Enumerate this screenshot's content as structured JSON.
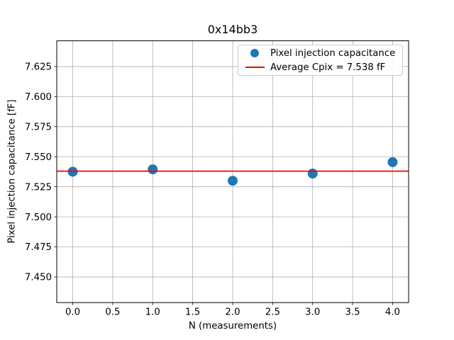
{
  "chart_data": {
    "type": "scatter",
    "title": "0x14bb3",
    "xlabel": "N (measurements)",
    "ylabel": "Pixel injection capacitance [fF]",
    "x": [
      0,
      1,
      2,
      3,
      4
    ],
    "y": [
      7.5375,
      7.5395,
      7.53,
      7.536,
      7.5455
    ],
    "average_line": {
      "value": 7.538,
      "label_value": "7.538 fF",
      "color": "#ff0000"
    },
    "xlim": [
      -0.2,
      4.2
    ],
    "ylim": [
      7.4287,
      7.6464
    ],
    "xticks": {
      "values": [
        0.0,
        0.5,
        1.0,
        1.5,
        2.0,
        2.5,
        3.0,
        3.5,
        4.0
      ],
      "labels": [
        "0.0",
        "0.5",
        "1.0",
        "1.5",
        "2.0",
        "2.5",
        "3.0",
        "3.5",
        "4.0"
      ]
    },
    "yticks": {
      "values": [
        7.45,
        7.475,
        7.5,
        7.525,
        7.55,
        7.575,
        7.6,
        7.625
      ],
      "labels": [
        "7.450",
        "7.475",
        "7.500",
        "7.525",
        "7.550",
        "7.575",
        "7.600",
        "7.625"
      ]
    },
    "legend": [
      {
        "label": "Pixel injection capacitance",
        "marker": "circle",
        "color": "#1f77b4"
      },
      {
        "label": "Average Cpix = 7.538 fF",
        "marker": "line",
        "color": "#ff0000"
      }
    ],
    "grid": true,
    "legend_position": "upper right",
    "marker_size_px": 14,
    "colors": {
      "marker": "#1f77b4",
      "average_line": "#ff0000",
      "grid": "#b0b0b0",
      "spine": "#000000",
      "background": "#ffffff",
      "legend_border": "#cccccc"
    }
  }
}
